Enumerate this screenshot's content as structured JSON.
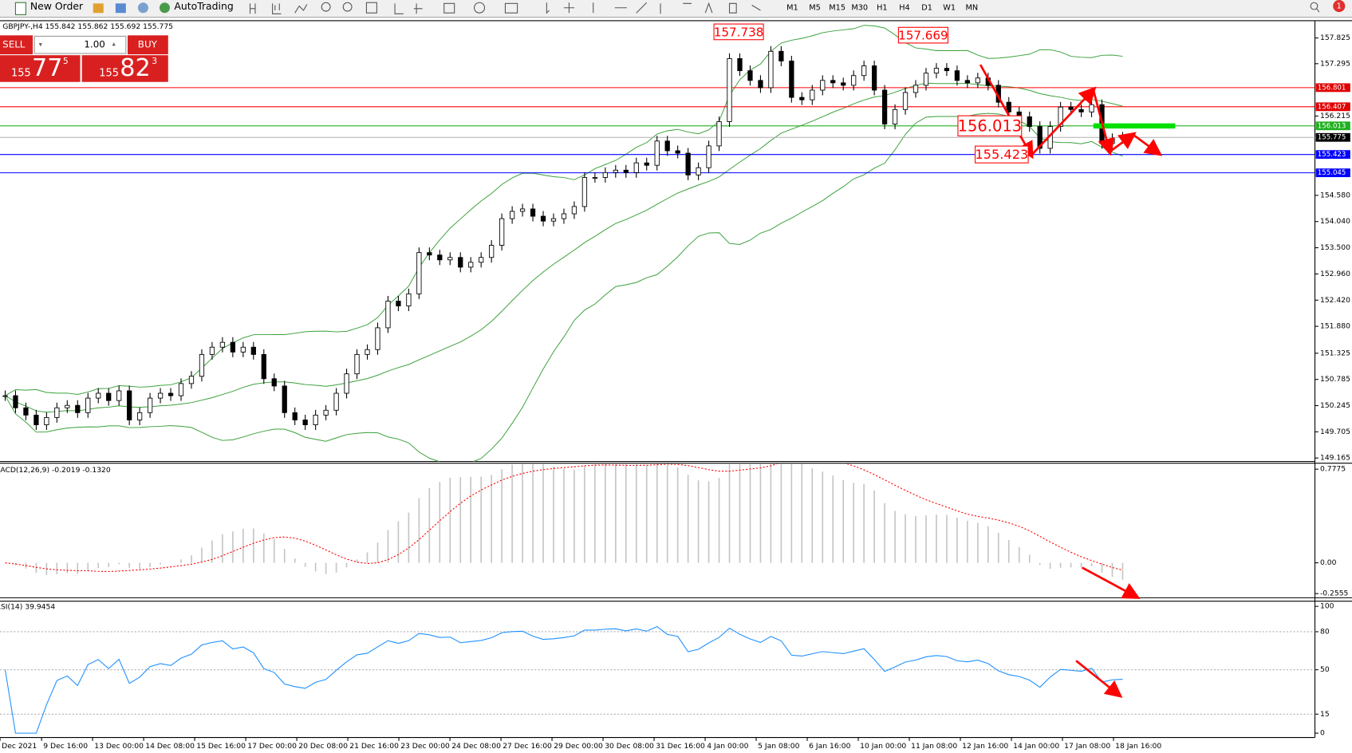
{
  "toolbar": {
    "new_order": "New Order",
    "auto_trading": "AutoTrading",
    "timeframes": [
      "M1",
      "M5",
      "M15",
      "M30",
      "H1",
      "H4",
      "D1",
      "W1",
      "MN"
    ],
    "notifications": "1"
  },
  "chart_header": "GBPJPY-,H4  155.842 155.862 155.692 155.775",
  "one_click": {
    "sell": "SELL",
    "lot": "1.00",
    "buy": "BUY",
    "bid": {
      "big": "155",
      "mid": "77",
      "small": "5"
    },
    "ask": {
      "big": "155",
      "mid": "82",
      "small": "3"
    }
  },
  "price_chart": {
    "type": "candlestick",
    "closes": [
      150.45,
      150.2,
      150.05,
      149.85,
      150.0,
      150.2,
      150.25,
      150.1,
      150.4,
      150.5,
      150.35,
      150.55,
      149.95,
      150.1,
      150.4,
      150.5,
      150.45,
      150.7,
      150.85,
      151.3,
      151.45,
      151.55,
      151.35,
      151.45,
      151.3,
      150.8,
      150.65,
      150.1,
      149.95,
      149.85,
      150.05,
      150.15,
      150.5,
      150.9,
      151.3,
      151.4,
      151.85,
      152.4,
      152.3,
      152.55,
      153.4,
      153.35,
      153.25,
      153.3,
      153.1,
      153.2,
      153.3,
      153.55,
      154.1,
      154.25,
      154.3,
      154.15,
      154.05,
      154.1,
      154.2,
      154.35,
      154.95,
      154.95,
      155.05,
      155.1,
      155.05,
      155.25,
      155.2,
      155.7,
      155.5,
      155.45,
      155.0,
      155.15,
      155.6,
      156.1,
      157.4,
      157.15,
      156.95,
      156.8,
      157.55,
      157.35,
      156.6,
      156.55,
      156.75,
      156.95,
      156.9,
      156.85,
      157.05,
      157.25,
      156.75,
      156.05,
      156.35,
      156.7,
      156.85,
      157.1,
      157.2,
      157.15,
      156.95,
      156.9,
      157.0,
      156.85,
      156.5,
      156.3,
      156.2,
      156.0,
      155.55,
      156.0,
      156.4,
      156.35,
      156.3,
      156.45,
      155.65,
      155.75,
      155.78
    ],
    "ylim": [
      149.094,
      158.181
    ],
    "yticks": [
      157.825,
      157.295,
      156.215,
      {
        "value": 154.58,
        "label": "154.580"
      },
      {
        "value": 154.04,
        "label": "154.040"
      },
      {
        "value": 153.5,
        "label": "153.500"
      },
      {
        "value": 152.96,
        "label": "152.960"
      },
      {
        "value": 152.42,
        "label": "152.420"
      },
      {
        "value": 151.88,
        "label": "151.880"
      },
      151.325,
      150.785,
      150.245,
      149.705,
      149.165
    ],
    "levels": [
      {
        "value": 156.801,
        "color": "#ff0000",
        "label_bg": "#e00000"
      },
      {
        "value": 156.407,
        "color": "#ff0000",
        "label_bg": "#e00000"
      },
      {
        "value": 156.013,
        "color": "#22b022",
        "label_bg": "#1fb01f"
      },
      {
        "value": 155.775,
        "color": "#b0b0b0",
        "label_bg": "#000000"
      },
      {
        "value": 155.423,
        "color": "#0000ff",
        "label_bg": "#0000ff"
      },
      {
        "value": 155.045,
        "color": "#0000ff",
        "label_bg": "#0000ff"
      }
    ],
    "annotations": [
      157.738,
      157.669,
      156.013,
      155.423
    ]
  },
  "macd": {
    "label": "MACD(12,26,9) -0.2019 -0.1320",
    "ylim": [
      -0.29,
      0.82
    ],
    "yticks": [
      0.7775,
      {
        "value": 0,
        "label": "0.00"
      },
      -0.2555
    ]
  },
  "rsi": {
    "label": "RSI(14) 39.9454",
    "ylim": [
      0,
      100
    ],
    "yticks": [
      100,
      80,
      50,
      15,
      0
    ]
  },
  "x_labels": [
    "Dec 2021",
    "9 Dec 16:00",
    "13 Dec 00:00",
    "14 Dec 08:00",
    "15 Dec 16:00",
    "17 Dec 00:00",
    "20 Dec 08:00",
    "21 Dec 16:00",
    "23 Dec 00:00",
    "24 Dec 08:00",
    "27 Dec 16:00",
    "29 Dec 00:00",
    "30 Dec 08:00",
    "31 Dec 16:00",
    "4 Jan 00:00",
    "5 Jan 08:00",
    "6 Jan 16:00",
    "10 Jan 00:00",
    "11 Jan 08:00",
    "12 Jan 16:00",
    "14 Jan 00:00",
    "17 Jan 08:00",
    "18 Jan 16:00"
  ]
}
